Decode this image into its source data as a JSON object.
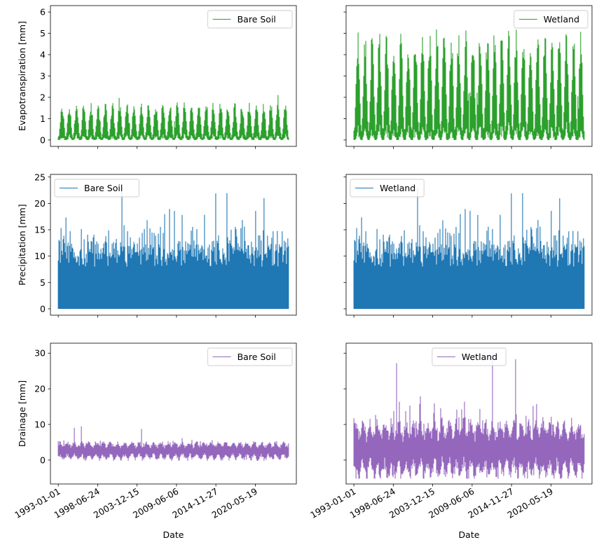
{
  "chart_data": [
    {
      "type": "line",
      "panel": "evapotranspiration-bare-soil",
      "ylabel": "Evapotranspiration [mm]",
      "xlabel": "",
      "series": [
        {
          "name": "Bare Soil",
          "color": "#2ca02c",
          "kind": "et",
          "peak": 1.6,
          "spike_max": 2.35,
          "seed": 11
        }
      ],
      "ylim": [
        -0.3,
        6.3
      ],
      "yticks": [
        0,
        1,
        2,
        3,
        4,
        5,
        6
      ],
      "show_yticklabels": true,
      "x_start": "1993-01-01",
      "x_end": "2024-12-31",
      "xlim": [
        "1991-12-02",
        "2026-02-01"
      ],
      "xticks": [
        "1993-01-01",
        "1998-06-24",
        "2003-12-15",
        "2009-06-06",
        "2014-11-27",
        "2020-05-19"
      ],
      "show_xticklabels": false,
      "legend": "top-right",
      "grid": false
    },
    {
      "type": "line",
      "panel": "evapotranspiration-wetland",
      "ylabel": "",
      "xlabel": "",
      "series": [
        {
          "name": "Wetland",
          "color": "#2ca02c",
          "kind": "et",
          "peak": 4.7,
          "spike_max": 6.15,
          "seed": 23
        }
      ],
      "ylim": [
        -0.3,
        6.3
      ],
      "yticks": [
        0,
        1,
        2,
        3,
        4,
        5,
        6
      ],
      "show_yticklabels": false,
      "x_start": "1993-01-01",
      "x_end": "2024-12-31",
      "xlim": [
        "1991-12-02",
        "2026-02-01"
      ],
      "xticks": [
        "1993-01-01",
        "1998-06-24",
        "2003-12-15",
        "2009-06-06",
        "2014-11-27",
        "2020-05-19"
      ],
      "show_xticklabels": false,
      "legend": "top-right",
      "grid": false
    },
    {
      "type": "line",
      "panel": "precipitation-bare-soil",
      "ylabel": "Precipitation [mm]",
      "xlabel": "",
      "series": [
        {
          "name": "Bare Soil",
          "color": "#1f77b4",
          "kind": "precip",
          "spike_max": 24.3,
          "seed": 5
        }
      ],
      "ylim": [
        -1.2,
        25.5
      ],
      "yticks": [
        0,
        5,
        10,
        15,
        20,
        25
      ],
      "show_yticklabels": true,
      "x_start": "1993-01-01",
      "x_end": "2024-12-31",
      "xlim": [
        "1991-12-02",
        "2026-02-01"
      ],
      "xticks": [
        "1993-01-01",
        "1998-06-24",
        "2003-12-15",
        "2009-06-06",
        "2014-11-27",
        "2020-05-19"
      ],
      "show_xticklabels": false,
      "legend": "top-left",
      "grid": false
    },
    {
      "type": "line",
      "panel": "precipitation-wetland",
      "ylabel": "",
      "xlabel": "",
      "series": [
        {
          "name": "Wetland",
          "color": "#1f77b4",
          "kind": "precip",
          "spike_max": 24.3,
          "seed": 5
        }
      ],
      "ylim": [
        -1.2,
        25.5
      ],
      "yticks": [
        0,
        5,
        10,
        15,
        20,
        25
      ],
      "show_yticklabels": false,
      "x_start": "1993-01-01",
      "x_end": "2024-12-31",
      "xlim": [
        "1991-12-02",
        "2026-02-01"
      ],
      "xticks": [
        "1993-01-01",
        "1998-06-24",
        "2003-12-15",
        "2009-06-06",
        "2014-11-27",
        "2020-05-19"
      ],
      "show_xticklabels": false,
      "legend": "top-left",
      "grid": false
    },
    {
      "type": "line",
      "panel": "drainage-bare-soil",
      "ylabel": "Drainage [mm]",
      "xlabel": "Date",
      "series": [
        {
          "name": "Bare Soil",
          "color": "#9467bd",
          "kind": "drain",
          "lo": 0.6,
          "hi": 4.6,
          "spike_max": 9.5,
          "min": -0.2,
          "seed": 31
        }
      ],
      "ylim": [
        -6.7,
        32.8
      ],
      "yticks": [
        0,
        10,
        20,
        30
      ],
      "show_yticklabels": true,
      "x_start": "1993-01-01",
      "x_end": "2024-12-31",
      "xlim": [
        "1991-12-02",
        "2026-02-01"
      ],
      "xticks": [
        "1993-01-01",
        "1998-06-24",
        "2003-12-15",
        "2009-06-06",
        "2014-11-27",
        "2020-05-19"
      ],
      "show_xticklabels": true,
      "legend": "top-right",
      "grid": false
    },
    {
      "type": "line",
      "panel": "drainage-wetland",
      "ylabel": "",
      "xlabel": "Date",
      "series": [
        {
          "name": "Wetland",
          "color": "#9467bd",
          "kind": "drain",
          "lo": -3.5,
          "hi": 9.5,
          "spike_max": 31.0,
          "min": -5.2,
          "seed": 47
        }
      ],
      "ylim": [
        -6.7,
        32.8
      ],
      "yticks": [
        0,
        10,
        20,
        30
      ],
      "show_yticklabels": false,
      "x_start": "1993-01-01",
      "x_end": "2024-12-31",
      "xlim": [
        "1991-12-02",
        "2026-02-01"
      ],
      "xticks": [
        "1993-01-01",
        "1998-06-24",
        "2003-12-15",
        "2009-06-06",
        "2014-11-27",
        "2020-05-19"
      ],
      "show_xticklabels": true,
      "legend": "top-center",
      "grid": false
    }
  ]
}
